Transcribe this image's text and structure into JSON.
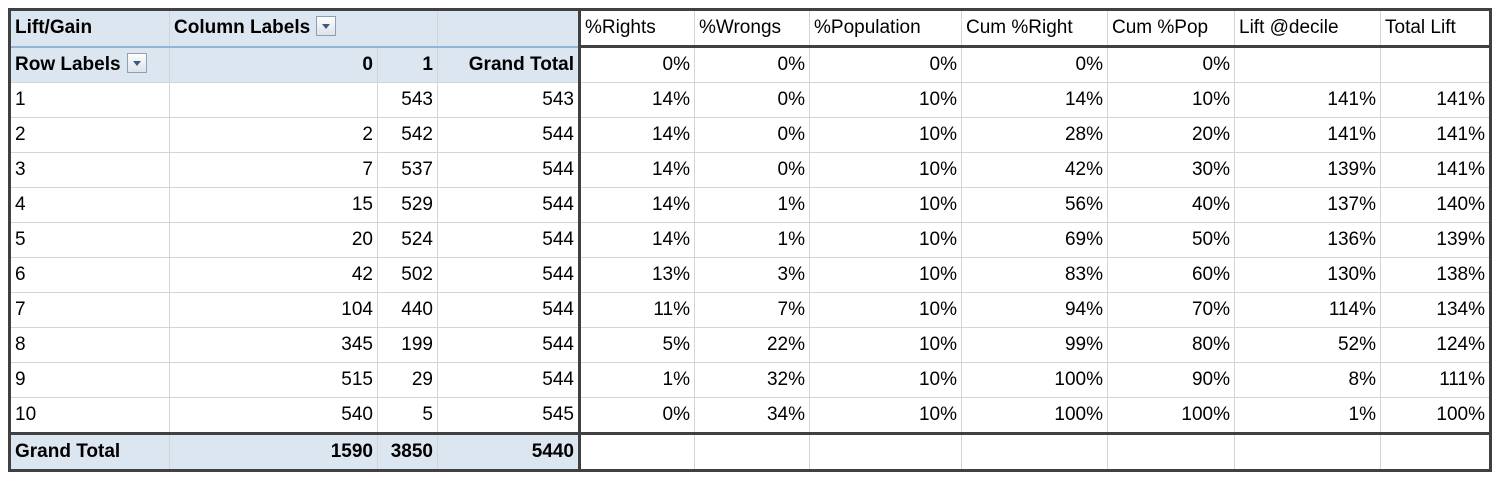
{
  "pivot": {
    "corner_label": "Lift/Gain",
    "column_labels": "Column Labels",
    "row_labels": "Row Labels",
    "col_0": "0",
    "col_1": "1",
    "grand_total_header": "Grand Total",
    "rows": [
      {
        "label": "1",
        "c0": "",
        "c1": "543",
        "total": "543"
      },
      {
        "label": "2",
        "c0": "2",
        "c1": "542",
        "total": "544"
      },
      {
        "label": "3",
        "c0": "7",
        "c1": "537",
        "total": "544"
      },
      {
        "label": "4",
        "c0": "15",
        "c1": "529",
        "total": "544"
      },
      {
        "label": "5",
        "c0": "20",
        "c1": "524",
        "total": "544"
      },
      {
        "label": "6",
        "c0": "42",
        "c1": "502",
        "total": "544"
      },
      {
        "label": "7",
        "c0": "104",
        "c1": "440",
        "total": "544"
      },
      {
        "label": "8",
        "c0": "345",
        "c1": "199",
        "total": "544"
      },
      {
        "label": "9",
        "c0": "515",
        "c1": "29",
        "total": "544"
      },
      {
        "label": "10",
        "c0": "540",
        "c1": "5",
        "total": "545"
      }
    ],
    "grand_total_row": {
      "label": "Grand Total",
      "c0": "1590",
      "c1": "3850",
      "total": "5440"
    }
  },
  "metrics": {
    "headers": [
      "%Rights",
      "%Wrongs",
      "%Population",
      "Cum %Right",
      "Cum %Pop",
      "Lift @decile",
      "Total Lift"
    ],
    "zero_row": [
      "0%",
      "0%",
      "0%",
      "0%",
      "0%",
      "",
      ""
    ],
    "rows": [
      [
        "14%",
        "0%",
        "10%",
        "14%",
        "10%",
        "141%",
        "141%"
      ],
      [
        "14%",
        "0%",
        "10%",
        "28%",
        "20%",
        "141%",
        "141%"
      ],
      [
        "14%",
        "0%",
        "10%",
        "42%",
        "30%",
        "139%",
        "141%"
      ],
      [
        "14%",
        "1%",
        "10%",
        "56%",
        "40%",
        "137%",
        "140%"
      ],
      [
        "14%",
        "1%",
        "10%",
        "69%",
        "50%",
        "136%",
        "139%"
      ],
      [
        "13%",
        "3%",
        "10%",
        "83%",
        "60%",
        "130%",
        "138%"
      ],
      [
        "11%",
        "7%",
        "10%",
        "94%",
        "70%",
        "114%",
        "134%"
      ],
      [
        "5%",
        "22%",
        "10%",
        "99%",
        "80%",
        "52%",
        "124%"
      ],
      [
        "1%",
        "32%",
        "10%",
        "100%",
        "90%",
        "8%",
        "111%"
      ],
      [
        "0%",
        "34%",
        "10%",
        "100%",
        "100%",
        "1%",
        "100%"
      ]
    ]
  }
}
